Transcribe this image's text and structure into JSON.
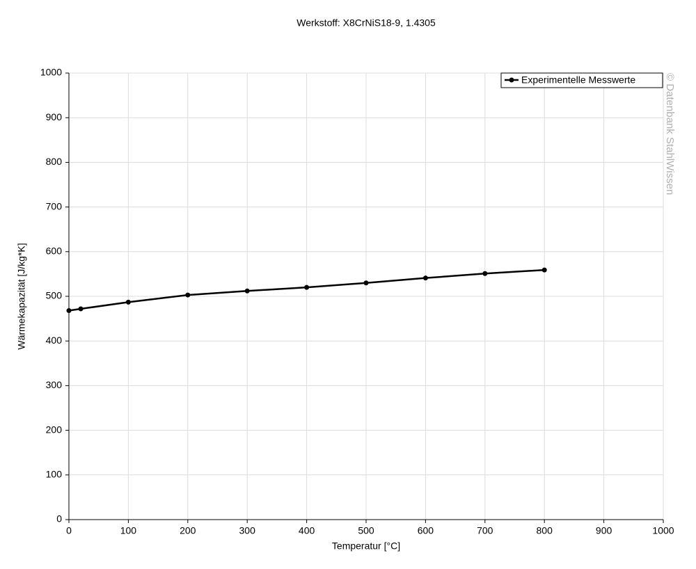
{
  "chart_data": {
    "type": "line",
    "title": "Werkstoff: X8CrNiS18-9, 1.4305",
    "x_label": "Temperatur [°C]",
    "y_label": "Wärmekapazität [J/kg*K]",
    "watermark": "© Datenbank StahlWissen",
    "x": [
      0,
      20,
      100,
      200,
      300,
      400,
      500,
      600,
      700,
      800
    ],
    "series": [
      {
        "name": "Experimentelle Messwerte",
        "color": "#000000",
        "values": [
          468,
          472,
          487,
          503,
          512,
          520,
          530,
          541,
          551,
          559
        ]
      }
    ],
    "xlim": [
      0,
      1000
    ],
    "xticks": [
      0,
      100,
      200,
      300,
      400,
      500,
      600,
      700,
      800,
      900,
      1000
    ],
    "ylim": [
      0,
      1000
    ],
    "yticks": [
      0,
      100,
      200,
      300,
      400,
      500,
      600,
      700,
      800,
      900,
      1000
    ],
    "grid": true,
    "legend": "top-right"
  }
}
